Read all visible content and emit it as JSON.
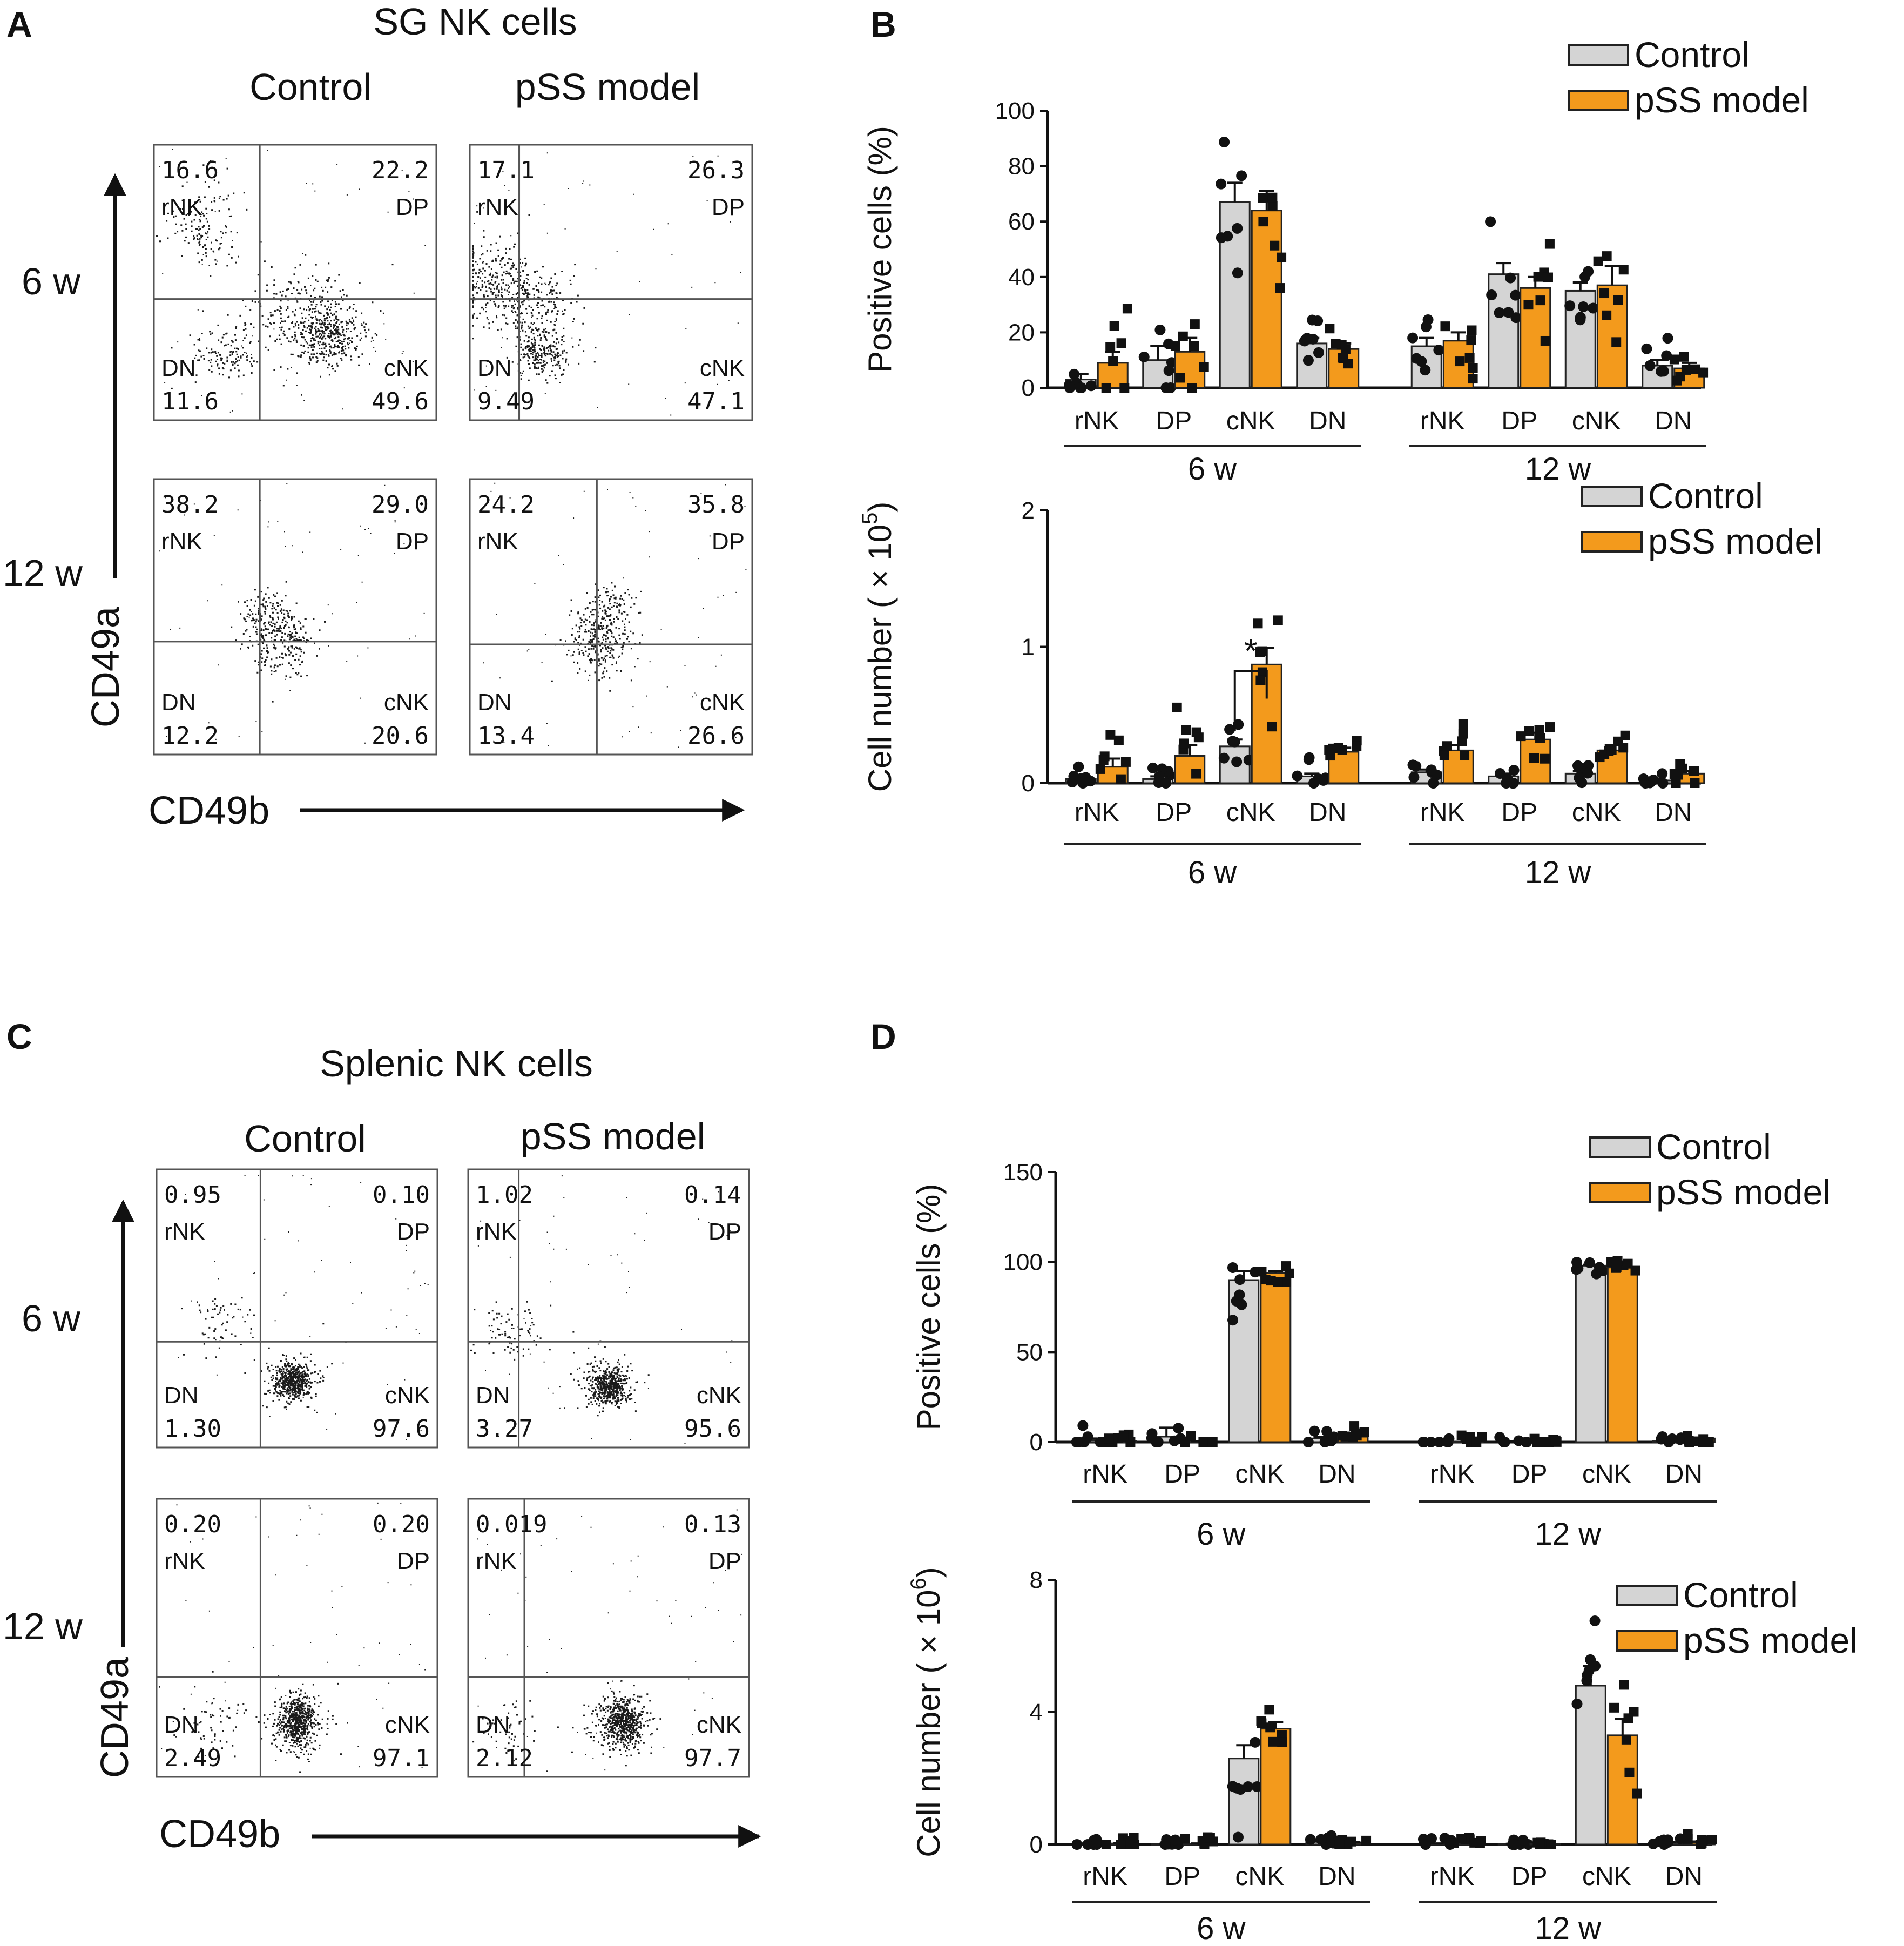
{
  "colors": {
    "control": "#d4d4d4",
    "pss": "#f39a1c",
    "axis": "#111111",
    "quad": "#555555"
  },
  "panel_letters": {
    "a": "A",
    "b": "B",
    "c": "C",
    "d": "D"
  },
  "flow": {
    "axis_y": "CD49a",
    "axis_x": "CD49b",
    "quadrants": {
      "ul": "rNK",
      "ur": "DP",
      "ll": "DN",
      "lr": "cNK"
    },
    "panels": [
      {
        "title": "SG NK cells",
        "col_labels": [
          "Control",
          "pSS model"
        ],
        "row_labels": [
          "6 w",
          "12 w"
        ],
        "plots": [
          {
            "ul": "16.6",
            "ur": "22.2",
            "ll": "11.6",
            "lr": "49.6"
          },
          {
            "ul": "17.1",
            "ur": "26.3",
            "ll": "9.49",
            "lr": "47.1"
          },
          {
            "ul": "38.2",
            "ur": "29.0",
            "ll": "12.2",
            "lr": "20.6"
          },
          {
            "ul": "24.2",
            "ur": "35.8",
            "ll": "13.4",
            "lr": "26.6"
          }
        ]
      },
      {
        "title": "Splenic NK cells",
        "col_labels": [
          "Control",
          "pSS model"
        ],
        "row_labels": [
          "6 w",
          "12 w"
        ],
        "plots": [
          {
            "ul": "0.95",
            "ur": "0.10",
            "ll": "1.30",
            "lr": "97.6"
          },
          {
            "ul": "1.02",
            "ur": "0.14",
            "ll": "3.27",
            "lr": "95.6"
          },
          {
            "ul": "0.20",
            "ur": "0.20",
            "ll": "2.49",
            "lr": "97.1"
          },
          {
            "ul": "0.019",
            "ur": "0.13",
            "ll": "2.12",
            "lr": "97.7"
          }
        ]
      }
    ]
  },
  "chart_data": [
    {
      "type": "bar",
      "panel": "B",
      "ylabel": "Positive cells (%)",
      "ylim": [
        0,
        100
      ],
      "yticks": [
        "0",
        "20",
        "40",
        "60",
        "80",
        "100"
      ],
      "categories": [
        "rNK",
        "DP",
        "cNK",
        "DN",
        "rNK",
        "DP",
        "cNK",
        "DN"
      ],
      "groups": [
        "6 w",
        "12 w"
      ],
      "legend": [
        "Control",
        "pSS model"
      ],
      "series": [
        {
          "name": "Control",
          "values": [
            3,
            10,
            67,
            16,
            15,
            41,
            35,
            8
          ],
          "errors": [
            2,
            5,
            7,
            2,
            3,
            4,
            3,
            2
          ]
        },
        {
          "name": "pSS model",
          "values": [
            9,
            13,
            64,
            14,
            17,
            36,
            37,
            7
          ],
          "errors": [
            4,
            5,
            7,
            2,
            3,
            4,
            7,
            2
          ]
        }
      ]
    },
    {
      "type": "bar",
      "panel": "B",
      "ylabel": "Cell number ( × 10",
      "ylabel_exp": "5",
      "ylabel_end": ")",
      "ylim": [
        0,
        2
      ],
      "yticks": [
        "0",
        "1",
        "2"
      ],
      "categories": [
        "rNK",
        "DP",
        "cNK",
        "DN",
        "rNK",
        "DP",
        "cNK",
        "DN"
      ],
      "groups": [
        "6 w",
        "12 w"
      ],
      "legend": [
        "Control",
        "pSS model"
      ],
      "annotation": "*",
      "series": [
        {
          "name": "Control",
          "values": [
            0.03,
            0.03,
            0.27,
            0.05,
            0.08,
            0.05,
            0.07,
            0.02
          ],
          "errors": [
            0.02,
            0.02,
            0.05,
            0.02,
            0.02,
            0.02,
            0.02,
            0.01
          ]
        },
        {
          "name": "pSS model",
          "values": [
            0.12,
            0.2,
            0.87,
            0.23,
            0.24,
            0.32,
            0.24,
            0.07
          ],
          "errors": [
            0.06,
            0.08,
            0.12,
            0.03,
            0.04,
            0.05,
            0.04,
            0.02
          ]
        }
      ]
    },
    {
      "type": "bar",
      "panel": "D",
      "ylabel": "Positive cells (%)",
      "ylim": [
        0,
        150
      ],
      "yticks": [
        "0",
        "50",
        "100",
        "150"
      ],
      "categories": [
        "rNK",
        "DP",
        "cNK",
        "DN",
        "rNK",
        "DP",
        "cNK",
        "DN"
      ],
      "groups": [
        "6 w",
        "12 w"
      ],
      "legend": [
        "Control",
        "pSS model"
      ],
      "series": [
        {
          "name": "Control",
          "values": [
            1,
            3,
            90,
            2,
            0.2,
            0.2,
            98,
            0.5
          ],
          "errors": [
            1,
            5,
            5,
            1,
            0.1,
            0.1,
            0.5,
            0.3
          ]
        },
        {
          "name": "pSS model",
          "values": [
            0.5,
            0.3,
            94,
            3,
            0.3,
            0.3,
            97,
            2
          ],
          "errors": [
            0.3,
            0.2,
            1,
            1,
            0.1,
            0.1,
            0.5,
            0.5
          ]
        }
      ]
    },
    {
      "type": "bar",
      "panel": "D",
      "ylabel": "Cell number ( × 10",
      "ylabel_exp": "6",
      "ylabel_end": ")",
      "ylim": [
        0,
        8
      ],
      "yticks": [
        "0",
        "4",
        "8"
      ],
      "categories": [
        "rNK",
        "DP",
        "cNK",
        "DN",
        "rNK",
        "DP",
        "cNK",
        "DN"
      ],
      "groups": [
        "6 w",
        "12 w"
      ],
      "legend": [
        "Control",
        "pSS model"
      ],
      "series": [
        {
          "name": "Control",
          "values": [
            0.02,
            0.01,
            2.6,
            0.08,
            0.02,
            0.01,
            4.8,
            0.05
          ],
          "errors": [
            0.01,
            0.01,
            0.4,
            0.03,
            0.01,
            0.01,
            0.6,
            0.02
          ]
        },
        {
          "name": "pSS model",
          "values": [
            0.03,
            0.02,
            3.5,
            0.05,
            0.03,
            0.02,
            3.3,
            0.07
          ],
          "errors": [
            0.01,
            0.01,
            0.2,
            0.02,
            0.01,
            0.01,
            0.5,
            0.02
          ]
        }
      ]
    }
  ]
}
